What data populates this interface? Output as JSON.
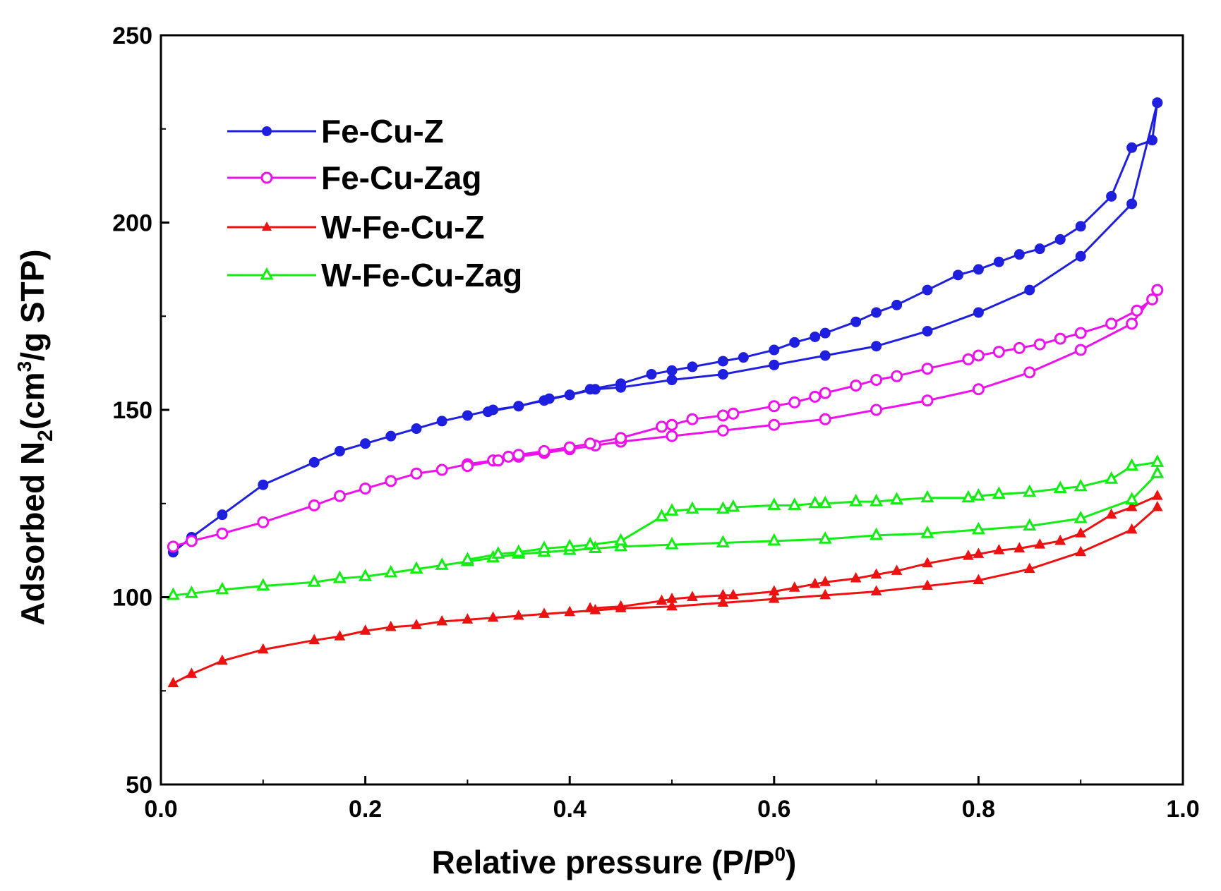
{
  "chart_data": {
    "type": "line",
    "title": "",
    "xlabel": {
      "main": "Relative pressure (P/P",
      "sup": "0",
      "tail": ")"
    },
    "ylabel": {
      "a": "Adsorbed N",
      "sub": "2",
      "b": "(cm",
      "sup": "3",
      "c": "/g STP)"
    },
    "xlim": [
      0.0,
      1.0
    ],
    "ylim": [
      50,
      250
    ],
    "xticks": [
      "0.0",
      "0.2",
      "0.4",
      "0.6",
      "0.8",
      "1.0"
    ],
    "yticks": [
      "50",
      "100",
      "150",
      "200",
      "250"
    ],
    "xtick_values": [
      0.0,
      0.2,
      0.4,
      0.6,
      0.8,
      1.0
    ],
    "ytick_values": [
      50,
      100,
      150,
      200,
      250
    ],
    "grid": false,
    "legend_position": "top-left",
    "series": [
      {
        "name": "Fe-Cu-Z",
        "color": "#1f1fe0",
        "marker": "filled-circle",
        "adsorption": {
          "x": [
            0.012,
            0.03,
            0.06,
            0.1,
            0.15,
            0.175,
            0.2,
            0.225,
            0.25,
            0.275,
            0.3,
            0.325,
            0.35,
            0.375,
            0.4,
            0.425,
            0.45,
            0.5,
            0.55,
            0.6,
            0.65,
            0.7,
            0.75,
            0.8,
            0.85,
            0.9,
            0.95,
            0.975
          ],
          "y": [
            112,
            116,
            122,
            130,
            136,
            139,
            141,
            143,
            145,
            147,
            148.5,
            150,
            151,
            152.5,
            154,
            155.5,
            156,
            158,
            159.5,
            162,
            164.5,
            167,
            171,
            176,
            182,
            191,
            205,
            232
          ]
        },
        "desorption": {
          "x": [
            0.975,
            0.97,
            0.95,
            0.93,
            0.9,
            0.88,
            0.86,
            0.84,
            0.82,
            0.8,
            0.78,
            0.75,
            0.72,
            0.7,
            0.68,
            0.65,
            0.64,
            0.62,
            0.6,
            0.57,
            0.55,
            0.52,
            0.5,
            0.48,
            0.45,
            0.42,
            0.4,
            0.38,
            0.35,
            0.32
          ],
          "y": [
            232,
            222,
            220,
            207,
            199,
            195.5,
            193,
            191.5,
            189.5,
            187.5,
            186,
            182,
            178,
            176,
            173.5,
            170.5,
            169.5,
            168,
            166,
            164,
            163,
            161.5,
            160.5,
            159.5,
            157,
            155.5,
            154,
            153,
            151,
            149.5
          ]
        }
      },
      {
        "name": "Fe-Cu-Zag",
        "color": "#ee11ee",
        "marker": "open-circle",
        "adsorption": {
          "x": [
            0.012,
            0.03,
            0.06,
            0.1,
            0.15,
            0.175,
            0.2,
            0.225,
            0.25,
            0.275,
            0.3,
            0.325,
            0.35,
            0.375,
            0.4,
            0.425,
            0.45,
            0.5,
            0.55,
            0.6,
            0.65,
            0.7,
            0.75,
            0.8,
            0.85,
            0.9,
            0.95,
            0.975
          ],
          "y": [
            113.5,
            115,
            117,
            120,
            124.5,
            127,
            129,
            131,
            133,
            134,
            135.5,
            136.5,
            137.5,
            138.5,
            139.5,
            140.5,
            141.5,
            143,
            144.5,
            146,
            147.5,
            150,
            152.5,
            155.5,
            160,
            166,
            173,
            182
          ]
        },
        "desorption": {
          "x": [
            0.975,
            0.97,
            0.955,
            0.93,
            0.9,
            0.88,
            0.86,
            0.84,
            0.82,
            0.8,
            0.79,
            0.75,
            0.72,
            0.7,
            0.68,
            0.65,
            0.64,
            0.62,
            0.6,
            0.56,
            0.55,
            0.52,
            0.5,
            0.49,
            0.45,
            0.42,
            0.4,
            0.375,
            0.35,
            0.34,
            0.33,
            0.3
          ],
          "y": [
            182,
            179.5,
            176.5,
            173,
            170.5,
            169,
            167.5,
            166.5,
            165.5,
            164.5,
            163.5,
            161,
            159,
            158,
            156.5,
            154.5,
            153.5,
            152,
            151,
            149,
            148.5,
            147.5,
            146,
            145.5,
            142.5,
            141,
            140,
            139,
            138,
            137.5,
            136.5,
            135
          ]
        }
      },
      {
        "name": "W-Fe-Cu-Z",
        "color": "#ee1111",
        "marker": "filled-triangle",
        "adsorption": {
          "x": [
            0.012,
            0.03,
            0.06,
            0.1,
            0.15,
            0.175,
            0.2,
            0.225,
            0.25,
            0.275,
            0.3,
            0.325,
            0.35,
            0.375,
            0.4,
            0.425,
            0.45,
            0.5,
            0.55,
            0.6,
            0.65,
            0.7,
            0.75,
            0.8,
            0.85,
            0.9,
            0.95,
            0.975
          ],
          "y": [
            77,
            79.5,
            83,
            86,
            88.5,
            89.5,
            91,
            92,
            92.5,
            93.5,
            94,
            94.5,
            95,
            95.5,
            96,
            96.5,
            97,
            97.5,
            98.5,
            99.5,
            100.5,
            101.5,
            103,
            104.5,
            107.5,
            112,
            118,
            124
          ]
        },
        "desorption": {
          "x": [
            0.975,
            0.95,
            0.93,
            0.9,
            0.88,
            0.86,
            0.84,
            0.82,
            0.8,
            0.79,
            0.75,
            0.72,
            0.7,
            0.68,
            0.65,
            0.64,
            0.62,
            0.6,
            0.56,
            0.55,
            0.52,
            0.5,
            0.49,
            0.45,
            0.42
          ],
          "y": [
            127,
            124,
            122,
            117,
            115,
            114,
            113,
            112.5,
            111.5,
            111,
            109,
            107,
            106,
            105,
            104,
            103.5,
            102.5,
            101.5,
            100.5,
            100.5,
            100,
            99.5,
            99,
            97.5,
            97
          ]
        }
      },
      {
        "name": "W-Fe-Cu-Zag",
        "color": "#11ee11",
        "marker": "open-triangle",
        "adsorption": {
          "x": [
            0.012,
            0.03,
            0.06,
            0.1,
            0.15,
            0.175,
            0.2,
            0.225,
            0.25,
            0.275,
            0.3,
            0.325,
            0.35,
            0.375,
            0.4,
            0.425,
            0.45,
            0.5,
            0.55,
            0.6,
            0.65,
            0.7,
            0.75,
            0.8,
            0.85,
            0.9,
            0.95,
            0.975
          ],
          "y": [
            100.5,
            101,
            102,
            103,
            104,
            105,
            105.5,
            106.5,
            107.5,
            108.5,
            109.5,
            110.5,
            111.5,
            112,
            112.5,
            113,
            113.5,
            114,
            114.5,
            115,
            115.5,
            116.5,
            117,
            118,
            119,
            121,
            126,
            133
          ]
        },
        "desorption": {
          "x": [
            0.975,
            0.95,
            0.93,
            0.9,
            0.88,
            0.85,
            0.82,
            0.8,
            0.79,
            0.75,
            0.72,
            0.7,
            0.68,
            0.65,
            0.64,
            0.62,
            0.6,
            0.56,
            0.55,
            0.52,
            0.5,
            0.49,
            0.45,
            0.42,
            0.4,
            0.375,
            0.35,
            0.33,
            0.3
          ],
          "y": [
            136,
            135,
            131.5,
            129.5,
            129,
            128,
            127.5,
            127,
            126.5,
            126.5,
            126,
            125.5,
            125.5,
            125,
            125,
            124.5,
            124.5,
            124,
            123.5,
            123.5,
            123,
            121.5,
            115,
            114,
            113.5,
            113,
            112,
            111.5,
            110
          ]
        }
      }
    ]
  }
}
